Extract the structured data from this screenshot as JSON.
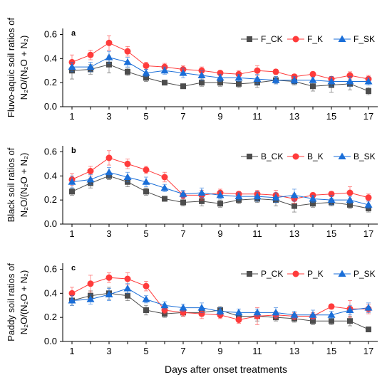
{
  "xlabel": "Days after onset treatments",
  "x_ticks": [
    1,
    3,
    5,
    7,
    9,
    11,
    13,
    15,
    17
  ],
  "y_ticks": [
    "0.0",
    "0.2",
    "0.4",
    "0.6"
  ],
  "chart_data": [
    {
      "type": "line",
      "panel": "a",
      "ylabel_line1": "Fluvo-aquic soil ratios of",
      "ylabel_line2": "N₂O/(N₂O + N₂)",
      "ylim": [
        0,
        0.65
      ],
      "x": [
        1,
        2,
        3,
        4,
        5,
        6,
        7,
        8,
        9,
        10,
        11,
        12,
        13,
        14,
        15,
        16,
        17
      ],
      "series": [
        {
          "name": "F_CK",
          "color": "#4d4d4d",
          "marker": "square",
          "values": [
            0.3,
            0.31,
            0.35,
            0.29,
            0.24,
            0.2,
            0.17,
            0.2,
            0.2,
            0.19,
            0.2,
            0.22,
            0.21,
            0.17,
            0.18,
            0.19,
            0.13
          ],
          "errors": [
            0.07,
            0.04,
            0.07,
            0.03,
            0.03,
            0.02,
            0.02,
            0.03,
            0.03,
            0.03,
            0.04,
            0.03,
            0.03,
            0.04,
            0.06,
            0.05,
            0.03
          ]
        },
        {
          "name": "F_K",
          "color": "#ff3b3b",
          "marker": "circle",
          "values": [
            0.37,
            0.43,
            0.53,
            0.46,
            0.34,
            0.33,
            0.31,
            0.3,
            0.28,
            0.27,
            0.3,
            0.29,
            0.25,
            0.27,
            0.23,
            0.26,
            0.23
          ],
          "errors": [
            0.06,
            0.04,
            0.06,
            0.04,
            0.03,
            0.03,
            0.03,
            0.03,
            0.02,
            0.03,
            0.04,
            0.02,
            0.02,
            0.02,
            0.02,
            0.03,
            0.03
          ]
        },
        {
          "name": "F_SK",
          "color": "#1a6ed8",
          "marker": "triangle",
          "values": [
            0.33,
            0.33,
            0.41,
            0.37,
            0.28,
            0.3,
            0.28,
            0.26,
            0.24,
            0.24,
            0.23,
            0.22,
            0.22,
            0.22,
            0.21,
            0.21,
            0.21
          ],
          "errors": [
            0.04,
            0.04,
            0.05,
            0.04,
            0.03,
            0.03,
            0.04,
            0.04,
            0.03,
            0.03,
            0.04,
            0.03,
            0.03,
            0.02,
            0.04,
            0.04,
            0.03
          ]
        }
      ]
    },
    {
      "type": "line",
      "panel": "b",
      "ylabel_line1": "Black soil ratios of",
      "ylabel_line2": "N₂O/(N₂O + N₂)",
      "ylim": [
        0,
        0.65
      ],
      "x": [
        1,
        2,
        3,
        4,
        5,
        6,
        7,
        8,
        9,
        10,
        11,
        12,
        13,
        14,
        15,
        16,
        17
      ],
      "series": [
        {
          "name": "B_CK",
          "color": "#4d4d4d",
          "marker": "square",
          "values": [
            0.27,
            0.34,
            0.4,
            0.35,
            0.27,
            0.21,
            0.18,
            0.19,
            0.17,
            0.2,
            0.21,
            0.2,
            0.15,
            0.17,
            0.18,
            0.16,
            0.13
          ],
          "errors": [
            0.03,
            0.04,
            0.03,
            0.04,
            0.03,
            0.02,
            0.03,
            0.04,
            0.03,
            0.03,
            0.03,
            0.05,
            0.05,
            0.03,
            0.03,
            0.03,
            0.03
          ]
        },
        {
          "name": "B_K",
          "color": "#ff3b3b",
          "marker": "circle",
          "values": [
            0.37,
            0.44,
            0.55,
            0.5,
            0.45,
            0.39,
            0.24,
            0.24,
            0.26,
            0.25,
            0.25,
            0.24,
            0.21,
            0.24,
            0.25,
            0.26,
            0.22
          ],
          "errors": [
            0.05,
            0.04,
            0.06,
            0.04,
            0.03,
            0.04,
            0.03,
            0.04,
            0.03,
            0.02,
            0.03,
            0.04,
            0.04,
            0.02,
            0.02,
            0.05,
            0.03
          ]
        },
        {
          "name": "B_SK",
          "color": "#1a6ed8",
          "marker": "triangle",
          "values": [
            0.35,
            0.37,
            0.43,
            0.39,
            0.35,
            0.3,
            0.25,
            0.26,
            0.24,
            0.23,
            0.23,
            0.22,
            0.24,
            0.21,
            0.2,
            0.2,
            0.16
          ],
          "errors": [
            0.05,
            0.04,
            0.04,
            0.04,
            0.04,
            0.03,
            0.03,
            0.04,
            0.03,
            0.03,
            0.04,
            0.04,
            0.05,
            0.03,
            0.04,
            0.03,
            0.03
          ]
        }
      ]
    },
    {
      "type": "line",
      "panel": "c",
      "ylabel_line1": "Paddy soil ratios of",
      "ylabel_line2": "N₂O/(N₂O + N₂)",
      "ylim": [
        0,
        0.65
      ],
      "x": [
        1,
        2,
        3,
        4,
        5,
        6,
        7,
        8,
        9,
        10,
        11,
        12,
        13,
        14,
        15,
        16,
        17
      ],
      "series": [
        {
          "name": "P_CK",
          "color": "#4d4d4d",
          "marker": "square",
          "values": [
            0.34,
            0.38,
            0.4,
            0.38,
            0.26,
            0.23,
            0.24,
            0.24,
            0.26,
            0.21,
            0.21,
            0.2,
            0.19,
            0.17,
            0.17,
            0.17,
            0.1
          ],
          "errors": [
            0.04,
            0.04,
            0.05,
            0.04,
            0.04,
            0.03,
            0.03,
            0.03,
            0.03,
            0.03,
            0.04,
            0.03,
            0.03,
            0.03,
            0.03,
            0.04,
            0.02
          ]
        },
        {
          "name": "P_K",
          "color": "#ff3b3b",
          "marker": "circle",
          "values": [
            0.4,
            0.48,
            0.53,
            0.52,
            0.46,
            0.26,
            0.24,
            0.23,
            0.22,
            0.18,
            0.21,
            0.22,
            0.21,
            0.21,
            0.29,
            0.27,
            0.27
          ],
          "errors": [
            0.05,
            0.07,
            0.04,
            0.05,
            0.04,
            0.03,
            0.03,
            0.04,
            0.03,
            0.03,
            0.07,
            0.03,
            0.03,
            0.03,
            0.02,
            0.07,
            0.04
          ]
        },
        {
          "name": "P_SK",
          "color": "#1a6ed8",
          "marker": "triangle",
          "values": [
            0.34,
            0.35,
            0.39,
            0.44,
            0.35,
            0.3,
            0.28,
            0.28,
            0.25,
            0.24,
            0.24,
            0.24,
            0.22,
            0.22,
            0.22,
            0.26,
            0.28
          ],
          "errors": [
            0.04,
            0.04,
            0.05,
            0.04,
            0.03,
            0.03,
            0.03,
            0.04,
            0.03,
            0.03,
            0.03,
            0.04,
            0.03,
            0.04,
            0.03,
            0.04,
            0.04
          ]
        }
      ]
    }
  ]
}
